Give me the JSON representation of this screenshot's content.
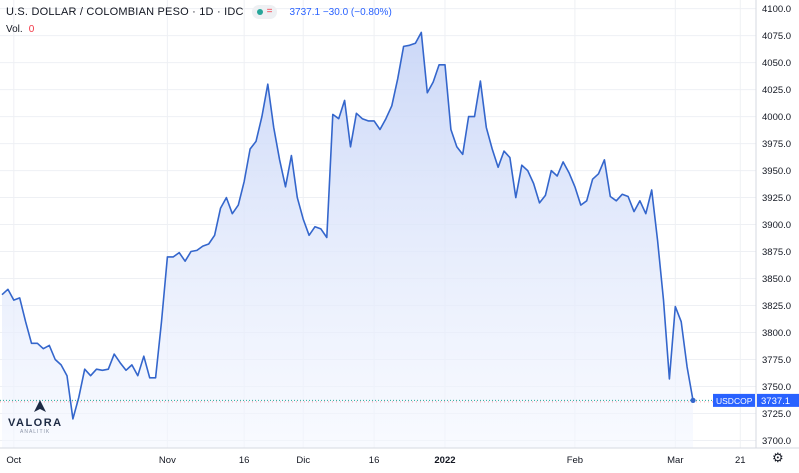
{
  "header": {
    "symbol_title": "U.S. DOLLAR / COLOMBIAN PESO · 1D · IDC",
    "last_price": "3737.1",
    "change": "−30.0 (−0.80%)",
    "volume_label": "Vol.",
    "volume_value": "0"
  },
  "badge": {
    "symbol": "USDCOP",
    "value": "3737.1"
  },
  "logo": {
    "text": "VALORA",
    "sub": "ANALITIK"
  },
  "icons": {
    "settings": "gear-icon",
    "status": "market-open-dot",
    "indicator": "equals-icon"
  },
  "colors": {
    "line": "#3466cc",
    "fill_top": "#c9d6f7",
    "fill_bottom": "#f4f7ff",
    "badge": "#2962ff",
    "grid": "#eef0f4"
  },
  "chart_data": {
    "type": "area",
    "series": [
      {
        "name": "USDCOP",
        "values": [
          3835,
          3840,
          3830,
          3832,
          3810,
          3790,
          3790,
          3785,
          3788,
          3775,
          3770,
          3760,
          3720,
          3740,
          3766,
          3760,
          3766,
          3765,
          3766,
          3780,
          3772,
          3765,
          3770,
          3760,
          3778,
          3758,
          3758,
          3810,
          3870,
          3870,
          3874,
          3866,
          3875,
          3876,
          3880,
          3882,
          3890,
          3915,
          3925,
          3910,
          3918,
          3940,
          3970,
          3977,
          4000,
          4030,
          3990,
          3960,
          3935,
          3964,
          3925,
          3905,
          3890,
          3898,
          3896,
          3888,
          4002,
          3998,
          4015,
          3972,
          4003,
          3998,
          3996,
          3996,
          3988,
          3998,
          4010,
          4035,
          4065,
          4066,
          4068,
          4078,
          4022,
          4032,
          4048,
          4048,
          3988,
          3972,
          3965,
          4000,
          4000,
          4033,
          3990,
          3970,
          3953,
          3968,
          3962,
          3925,
          3955,
          3950,
          3938,
          3920,
          3927,
          3950,
          3945,
          3958,
          3948,
          3935,
          3918,
          3922,
          3942,
          3947,
          3960,
          3926,
          3922,
          3928,
          3926,
          3912,
          3922,
          3910,
          3932,
          3885,
          3830,
          3757,
          3824,
          3810,
          3768,
          3737.1
        ]
      }
    ],
    "x_ticks": [
      {
        "label": "Oct",
        "i": 2
      },
      {
        "label": "Nov",
        "i": 28
      },
      {
        "label": "16",
        "i": 41
      },
      {
        "label": "Dic",
        "i": 51
      },
      {
        "label": "16",
        "i": 63
      },
      {
        "label": "2022",
        "i": 75
      },
      {
        "label": "Feb",
        "i": 97
      },
      {
        "label": "Mar",
        "i": 114
      },
      {
        "label": "21",
        "i": 125
      }
    ],
    "x_range": [
      0,
      128
    ],
    "y_ticks": [
      "4100.0",
      "4075.0",
      "4050.0",
      "4025.0",
      "4000.0",
      "3975.0",
      "3950.0",
      "3925.0",
      "3900.0",
      "3875.0",
      "3850.0",
      "3825.0",
      "3800.0",
      "3775.0",
      "3750.0",
      "3725.0",
      "3700.0"
    ],
    "ylim": [
      3693,
      4108
    ],
    "grid": true,
    "last_value": 3737.1
  }
}
